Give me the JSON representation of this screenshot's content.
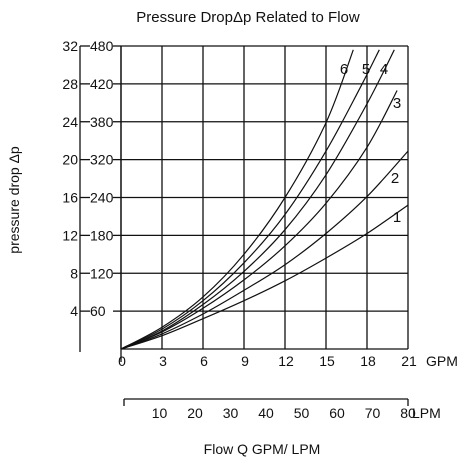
{
  "chart_data": {
    "type": "line",
    "title": "Pressure DropΔp Related to Flow",
    "ylabel": "pressure drop  Δp",
    "xlabel": "Flow Q GPM/ LPM",
    "x_unit_primary": "GPM",
    "x_unit_secondary": "LPM",
    "x_ticks_gpm": [
      "0",
      "3",
      "6",
      "9",
      "12",
      "15",
      "18",
      "21"
    ],
    "x_ticks_lpm": [
      "10",
      "20",
      "30",
      "40",
      "50",
      "60",
      "70",
      "80"
    ],
    "y_ticks_inner": [
      "60",
      "120",
      "180",
      "240",
      "320",
      "380",
      "420",
      "480"
    ],
    "y_ticks_outer": [
      "4",
      "8",
      "12",
      "16",
      "20",
      "24",
      "28",
      "32"
    ],
    "xlim": [
      0,
      21
    ],
    "ylim": [
      0,
      32
    ],
    "grid": true,
    "series": [
      {
        "name": "1",
        "x": [
          0,
          3,
          6,
          9,
          12,
          15,
          18,
          21
        ],
        "y": [
          0,
          1.4,
          3.2,
          5.1,
          7.2,
          9.6,
          12.2,
          15.2
        ]
      },
      {
        "name": "2",
        "x": [
          0,
          3,
          6,
          9,
          12,
          15,
          18,
          21
        ],
        "y": [
          0,
          1.6,
          3.7,
          6.2,
          8.9,
          12.2,
          16.1,
          20.9
        ]
      },
      {
        "name": "3",
        "x": [
          0,
          3,
          6,
          9,
          12,
          15,
          18,
          20.2
        ],
        "y": [
          0,
          1.8,
          4.3,
          7.3,
          10.9,
          15.4,
          21.3,
          27.3
        ]
      },
      {
        "name": "4",
        "x": [
          0,
          3,
          6,
          9,
          12,
          15,
          18,
          20.0
        ],
        "y": [
          0,
          1.9,
          4.7,
          8.2,
          12.6,
          18.4,
          25.9,
          31.6
        ]
      },
      {
        "name": "5",
        "x": [
          0,
          3,
          6,
          9,
          12,
          15,
          17.5,
          18.9
        ],
        "y": [
          0,
          2.1,
          5.1,
          9.1,
          14.2,
          20.9,
          27.6,
          31.6
        ]
      },
      {
        "name": "6",
        "x": [
          0,
          3,
          6,
          9,
          12,
          15,
          17.0
        ],
        "y": [
          0,
          2.3,
          5.5,
          10.0,
          16.0,
          23.9,
          31.6
        ]
      }
    ]
  }
}
